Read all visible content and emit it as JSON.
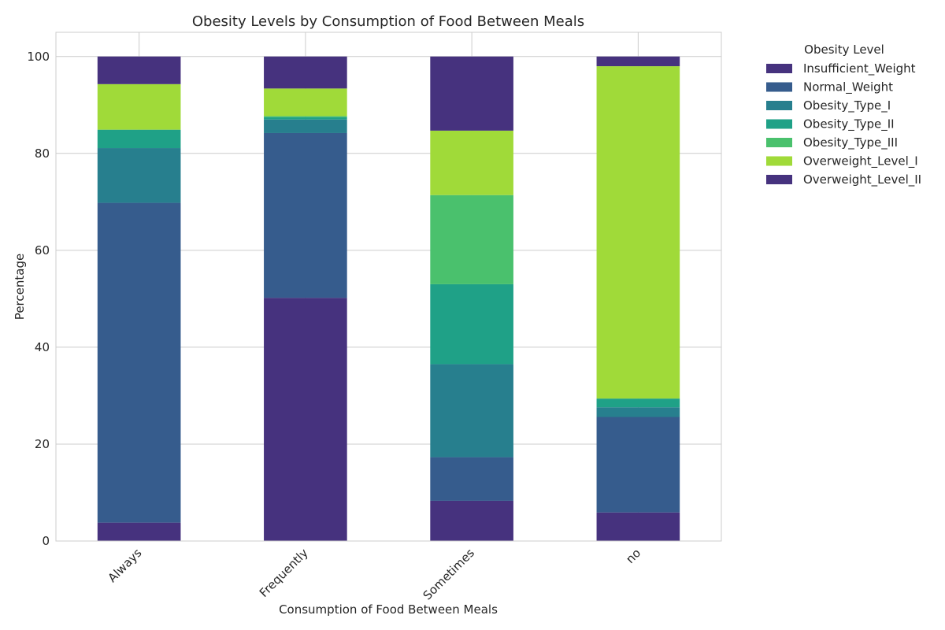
{
  "chart_data": {
    "type": "bar",
    "stacked": true,
    "title": "Obesity Levels by Consumption of Food Between Meals",
    "xlabel": "Consumption of Food Between Meals",
    "ylabel": "Percentage",
    "ylim": [
      0,
      105
    ],
    "yticks": [
      0,
      20,
      40,
      60,
      80,
      100
    ],
    "grid": true,
    "legend_title": "Obesity Level",
    "legend_position": "outside-right",
    "categories": [
      "Always",
      "Frequently",
      "Sometimes",
      "no"
    ],
    "series": [
      {
        "name": "Insufficient_Weight",
        "color": "#46327e",
        "values": [
          3.8,
          50.2,
          8.3,
          5.9
        ]
      },
      {
        "name": "Normal_Weight",
        "color": "#365c8d",
        "values": [
          66.0,
          34.0,
          9.0,
          19.7
        ]
      },
      {
        "name": "Obesity_Type_I",
        "color": "#277f8e",
        "values": [
          11.3,
          2.8,
          19.2,
          2.0
        ]
      },
      {
        "name": "Obesity_Type_II",
        "color": "#1fa187",
        "values": [
          3.8,
          0.5,
          16.5,
          1.8
        ]
      },
      {
        "name": "Obesity_Type_III",
        "color": "#4ac16d",
        "values": [
          0.0,
          0.2,
          18.4,
          0.0
        ]
      },
      {
        "name": "Overweight_Level_I",
        "color": "#a0da39",
        "values": [
          9.4,
          5.7,
          13.3,
          68.6
        ]
      },
      {
        "name": "Overweight_Level_II",
        "color": "#46327e",
        "values": [
          5.7,
          6.6,
          15.3,
          2.0
        ]
      }
    ]
  }
}
